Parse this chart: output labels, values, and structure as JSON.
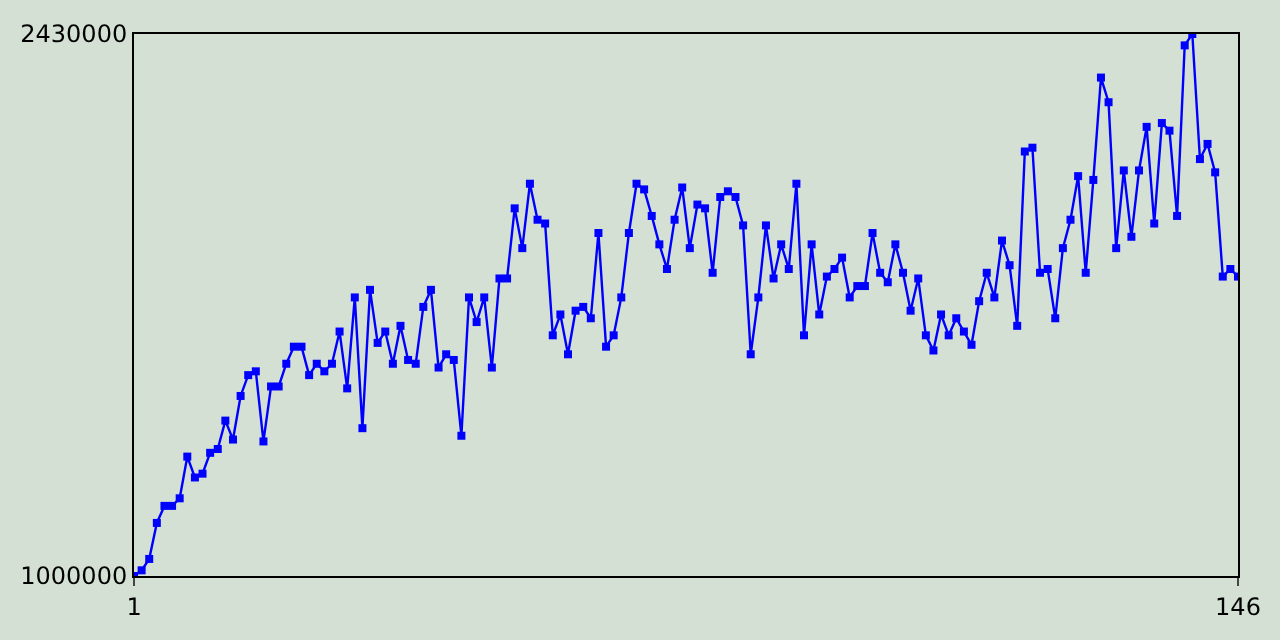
{
  "chart_data": {
    "type": "line",
    "marker": "square",
    "line_style": "solid",
    "legend": false,
    "x": [
      1,
      2,
      3,
      4,
      5,
      6,
      7,
      8,
      9,
      10,
      11,
      12,
      13,
      14,
      15,
      16,
      17,
      18,
      19,
      20,
      21,
      22,
      23,
      24,
      25,
      26,
      27,
      28,
      29,
      30,
      31,
      32,
      33,
      34,
      35,
      36,
      37,
      38,
      39,
      40,
      41,
      42,
      43,
      44,
      45,
      46,
      47,
      48,
      49,
      50,
      51,
      52,
      53,
      54,
      55,
      56,
      57,
      58,
      59,
      60,
      61,
      62,
      63,
      64,
      65,
      66,
      67,
      68,
      69,
      70,
      71,
      72,
      73,
      74,
      75,
      76,
      77,
      78,
      79,
      80,
      81,
      82,
      83,
      84,
      85,
      86,
      87,
      88,
      89,
      90,
      91,
      92,
      93,
      94,
      95,
      96,
      97,
      98,
      99,
      100,
      101,
      102,
      103,
      104,
      105,
      106,
      107,
      108,
      109,
      110,
      111,
      112,
      113,
      114,
      115,
      116,
      117,
      118,
      119,
      120,
      121,
      122,
      123,
      124,
      125,
      126,
      127,
      128,
      129,
      130,
      131,
      132,
      133,
      134,
      135,
      136,
      137,
      138,
      139,
      140,
      141,
      142,
      143,
      144,
      145,
      146
    ],
    "series": [
      {
        "color": "#0000ff",
        "values": [
          1000000,
          1015000,
          1045000,
          1140000,
          1185000,
          1185000,
          1205000,
          1315000,
          1260000,
          1270000,
          1325000,
          1335000,
          1410000,
          1360000,
          1475000,
          1530000,
          1540000,
          1355000,
          1500000,
          1500000,
          1560000,
          1605000,
          1605000,
          1530000,
          1560000,
          1540000,
          1560000,
          1645000,
          1495000,
          1735000,
          1390000,
          1755000,
          1615000,
          1645000,
          1560000,
          1660000,
          1570000,
          1560000,
          1710000,
          1755000,
          1550000,
          1585000,
          1570000,
          1370000,
          1735000,
          1670000,
          1735000,
          1550000,
          1785000,
          1785000,
          1970000,
          1865000,
          2035000,
          1940000,
          1930000,
          1635000,
          1690000,
          1585000,
          1700000,
          1710000,
          1680000,
          1905000,
          1605000,
          1635000,
          1735000,
          1905000,
          2035000,
          2020000,
          1950000,
          1875000,
          1810000,
          1940000,
          2025000,
          1865000,
          1980000,
          1970000,
          1800000,
          2000000,
          2015000,
          2000000,
          1925000,
          1585000,
          1735000,
          1925000,
          1785000,
          1875000,
          1810000,
          2035000,
          1635000,
          1875000,
          1690000,
          1790000,
          1810000,
          1840000,
          1735000,
          1765000,
          1765000,
          1905000,
          1800000,
          1775000,
          1875000,
          1800000,
          1700000,
          1785000,
          1635000,
          1595000,
          1690000,
          1635000,
          1680000,
          1645000,
          1610000,
          1725000,
          1800000,
          1735000,
          1885000,
          1820000,
          1660000,
          2120000,
          2130000,
          1800000,
          1810000,
          1680000,
          1865000,
          1940000,
          2055000,
          1800000,
          2045000,
          2315000,
          2250000,
          1865000,
          2070000,
          1895000,
          2070000,
          2185000,
          1930000,
          2195000,
          2175000,
          1950000,
          2400000,
          2430000,
          2100000,
          2140000,
          2065000,
          1790000,
          1810000,
          1790000
        ]
      }
    ],
    "xlim": [
      1,
      146
    ],
    "xticks": [
      1,
      146
    ],
    "ylim": [
      1000000,
      2430000
    ],
    "yticks": [
      1000000,
      2430000
    ]
  }
}
